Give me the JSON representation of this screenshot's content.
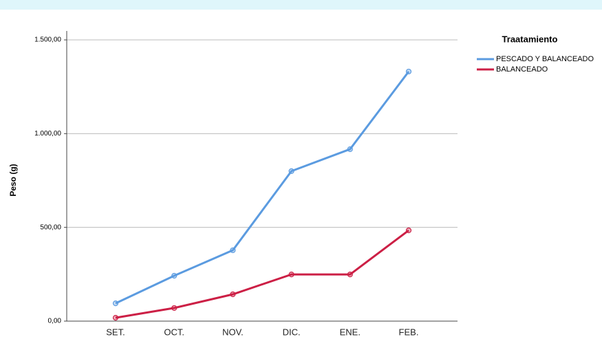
{
  "chart_data": {
    "type": "line",
    "legend_title": "Traatamiento",
    "y_label": "Peso (g)",
    "categories": [
      "SET.",
      "OCT.",
      "NOV.",
      "DIC.",
      "ENE.",
      "FEB."
    ],
    "series": [
      {
        "name": "PESCADO Y BALANCEADO",
        "color": "#5b9be0",
        "values": [
          95,
          242,
          378,
          800,
          917,
          1331
        ]
      },
      {
        "name": "BALANCEADO",
        "color": "#cc1f45",
        "values": [
          18,
          70,
          143,
          249,
          249,
          484
        ]
      }
    ],
    "ylim": [
      0,
      1500
    ],
    "yticks": [
      {
        "value": 0,
        "label": "0,00"
      },
      {
        "value": 500,
        "label": "500,00"
      },
      {
        "value": 1000,
        "label": "1.000,00"
      },
      {
        "value": 1500,
        "label": "1.500,00"
      }
    ],
    "grid": true,
    "legend": "right"
  }
}
